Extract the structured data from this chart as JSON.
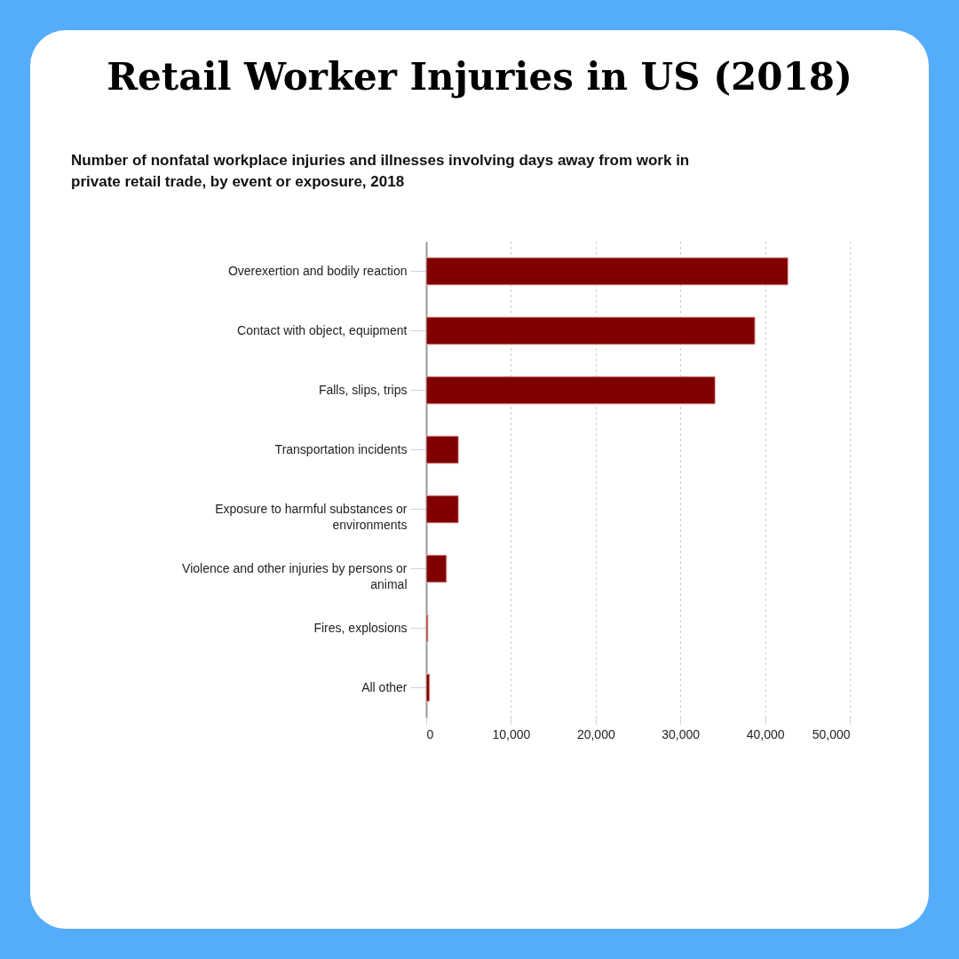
{
  "chart_data": {
    "type": "bar",
    "orientation": "horizontal",
    "title": "Retail Worker Injuries in US (2018)",
    "subtitle": "Number of nonfatal workplace injuries and illnesses involving days away from work in private retail trade, by event or exposure, 2018",
    "categories": [
      "Overexertion and bodily reaction",
      "Contact with object, equipment",
      "Falls, slips, trips",
      "Transportation incidents",
      "Exposure to harmful substances or environments",
      "Violence and other injuries by persons or animal",
      "Fires, explosions",
      "All other"
    ],
    "values": [
      42700,
      38800,
      34100,
      3800,
      3800,
      2400,
      200,
      400
    ],
    "color": "#800000",
    "xlim": [
      0,
      50000
    ],
    "xticks": [
      0,
      {
        "value": 10000,
        "label": "10,000"
      },
      {
        "value": 20000,
        "label": "20,000"
      },
      {
        "value": 30000,
        "label": "30,000"
      },
      {
        "value": 40000,
        "label": "40,000"
      },
      {
        "value": 50000,
        "label": "50,000"
      }
    ],
    "grid": "x"
  }
}
